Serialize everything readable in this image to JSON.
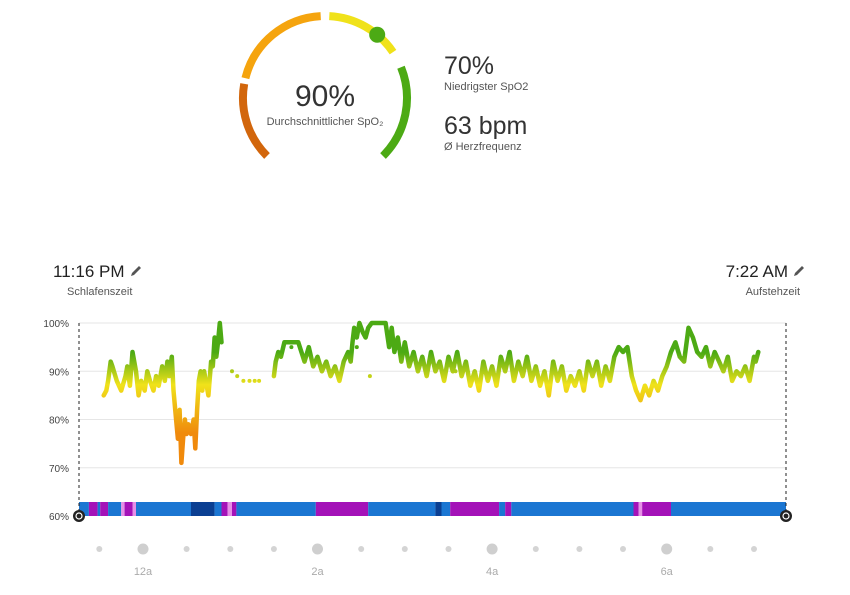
{
  "summary": {
    "avg_value": "90%",
    "avg_label": "Durchschnittlicher SpO₂",
    "avg_percent": 90,
    "lowest_value": "70%",
    "lowest_label": "Niedrigster SpO2",
    "hr_value": "63 bpm",
    "hr_label": "Ø Herzfrequenz"
  },
  "sleep": {
    "start_time": "11:16 PM",
    "start_label": "Schlafenszeit",
    "end_time": "7:22 AM",
    "end_label": "Aufstehzeit"
  },
  "colors": {
    "high": "#4caa14",
    "mid": "#f0e21a",
    "low": "#f08a0c",
    "gauge_low": "#d2660c",
    "gauge_mid": "#f5a40e",
    "gauge_high": "#4caa14",
    "stage_light": "#1b76d2",
    "stage_deep": "#0b3f92",
    "stage_rem": "#a412b8",
    "stage_awake": "#e68fe6"
  },
  "chart_data": {
    "type": "line",
    "ylabel": "",
    "y_ticks": [
      "100%",
      "90%",
      "80%",
      "70%",
      "60%"
    ],
    "ylim": [
      60,
      100
    ],
    "x_ticks": [
      "12a",
      "2a",
      "4a",
      "6a"
    ],
    "x_tick_hours": [
      0,
      2,
      4,
      6
    ],
    "xlim_hours": [
      -0.733,
      7.367
    ],
    "grid": true,
    "spo2": [
      [
        -0.45,
        85
      ],
      [
        -0.42,
        86
      ],
      [
        -0.4,
        88
      ],
      [
        -0.37,
        92
      ],
      [
        -0.35,
        91
      ],
      [
        -0.3,
        88
      ],
      [
        -0.25,
        86
      ],
      [
        -0.2,
        89
      ],
      [
        -0.18,
        91
      ],
      [
        -0.15,
        87
      ],
      [
        -0.12,
        94
      ],
      [
        -0.08,
        90
      ],
      [
        -0.05,
        85
      ],
      [
        -0.02,
        88
      ],
      [
        0.02,
        86
      ],
      [
        0.05,
        90
      ],
      [
        0.08,
        88
      ],
      [
        0.12,
        86
      ],
      [
        0.15,
        89
      ],
      [
        0.18,
        87
      ],
      [
        0.22,
        91
      ],
      [
        0.25,
        88
      ],
      [
        0.28,
        92
      ],
      [
        0.3,
        89
      ],
      [
        0.33,
        93
      ],
      [
        0.35,
        86
      ],
      [
        0.38,
        80
      ],
      [
        0.4,
        76
      ],
      [
        0.42,
        82
      ],
      [
        0.44,
        71
      ],
      [
        0.46,
        76
      ],
      [
        0.48,
        80
      ],
      [
        0.5,
        77
      ],
      [
        0.52,
        79
      ],
      [
        0.55,
        77
      ],
      [
        0.58,
        80
      ],
      [
        0.6,
        74
      ],
      [
        0.62,
        82
      ],
      [
        0.64,
        88
      ],
      [
        0.66,
        90
      ],
      [
        0.68,
        86
      ],
      [
        0.7,
        90
      ],
      [
        0.72,
        88
      ],
      [
        0.75,
        85
      ],
      [
        0.78,
        92
      ],
      [
        0.8,
        91
      ],
      [
        0.82,
        97
      ],
      [
        0.84,
        93
      ],
      [
        0.86,
        96
      ],
      [
        0.88,
        100
      ],
      [
        0.9,
        96
      ],
      [
        1.5,
        89
      ],
      [
        1.52,
        92
      ],
      [
        1.55,
        94
      ],
      [
        1.58,
        93
      ],
      [
        1.62,
        96
      ],
      [
        1.78,
        96
      ],
      [
        1.85,
        92
      ],
      [
        1.9,
        95
      ],
      [
        1.95,
        91
      ],
      [
        2.0,
        93
      ],
      [
        2.05,
        90
      ],
      [
        2.1,
        92
      ],
      [
        2.15,
        89
      ],
      [
        2.2,
        91
      ],
      [
        2.25,
        88
      ],
      [
        2.3,
        92
      ],
      [
        2.35,
        94
      ],
      [
        2.38,
        92
      ],
      [
        2.4,
        96
      ],
      [
        2.42,
        99
      ],
      [
        2.45,
        97
      ],
      [
        2.48,
        100
      ],
      [
        2.52,
        98
      ],
      [
        2.55,
        97
      ],
      [
        2.58,
        99
      ],
      [
        2.62,
        100
      ],
      [
        2.68,
        100
      ],
      [
        2.72,
        100
      ],
      [
        2.78,
        100
      ],
      [
        2.82,
        95
      ],
      [
        2.85,
        99
      ],
      [
        2.88,
        94
      ],
      [
        2.92,
        97
      ],
      [
        2.96,
        92
      ],
      [
        3.0,
        96
      ],
      [
        3.05,
        91
      ],
      [
        3.1,
        94
      ],
      [
        3.15,
        90
      ],
      [
        3.2,
        93
      ],
      [
        3.25,
        89
      ],
      [
        3.3,
        94
      ],
      [
        3.35,
        90
      ],
      [
        3.4,
        92
      ],
      [
        3.45,
        88
      ],
      [
        3.5,
        93
      ],
      [
        3.55,
        90
      ],
      [
        3.6,
        94
      ],
      [
        3.65,
        89
      ],
      [
        3.7,
        92
      ],
      [
        3.75,
        87
      ],
      [
        3.8,
        90
      ],
      [
        3.85,
        86
      ],
      [
        3.9,
        92
      ],
      [
        3.95,
        88
      ],
      [
        4.0,
        91
      ],
      [
        4.05,
        87
      ],
      [
        4.1,
        93
      ],
      [
        4.15,
        90
      ],
      [
        4.2,
        94
      ],
      [
        4.25,
        88
      ],
      [
        4.3,
        92
      ],
      [
        4.35,
        89
      ],
      [
        4.4,
        93
      ],
      [
        4.45,
        88
      ],
      [
        4.5,
        91
      ],
      [
        4.55,
        87
      ],
      [
        4.6,
        90
      ],
      [
        4.65,
        85
      ],
      [
        4.7,
        92
      ],
      [
        4.75,
        88
      ],
      [
        4.8,
        91
      ],
      [
        4.85,
        86
      ],
      [
        4.9,
        89
      ],
      [
        4.95,
        87
      ],
      [
        5.0,
        90
      ],
      [
        5.05,
        86
      ],
      [
        5.1,
        92
      ],
      [
        5.15,
        89
      ],
      [
        5.2,
        92
      ],
      [
        5.25,
        87
      ],
      [
        5.3,
        91
      ],
      [
        5.35,
        88
      ],
      [
        5.4,
        93
      ],
      [
        5.45,
        95
      ],
      [
        5.5,
        94
      ],
      [
        5.55,
        95
      ],
      [
        5.6,
        89
      ],
      [
        5.65,
        86
      ],
      [
        5.7,
        84
      ],
      [
        5.75,
        87
      ],
      [
        5.8,
        85
      ],
      [
        5.85,
        88
      ],
      [
        5.9,
        86
      ],
      [
        5.95,
        89
      ],
      [
        6.0,
        91
      ],
      [
        6.05,
        94
      ],
      [
        6.1,
        96
      ],
      [
        6.15,
        93
      ],
      [
        6.2,
        92
      ],
      [
        6.25,
        99
      ],
      [
        6.3,
        97
      ],
      [
        6.35,
        94
      ],
      [
        6.4,
        93
      ],
      [
        6.45,
        95
      ],
      [
        6.5,
        91
      ],
      [
        6.55,
        94
      ],
      [
        6.6,
        92
      ],
      [
        6.65,
        90
      ],
      [
        6.7,
        93
      ],
      [
        6.75,
        88
      ],
      [
        6.8,
        90
      ],
      [
        6.85,
        89
      ],
      [
        6.9,
        91
      ],
      [
        6.95,
        88
      ],
      [
        7.0,
        93
      ],
      [
        7.02,
        92
      ],
      [
        7.05,
        94
      ]
    ],
    "spo2_dots": [
      [
        1.02,
        90
      ],
      [
        1.08,
        89
      ],
      [
        1.15,
        88
      ],
      [
        1.22,
        88
      ],
      [
        1.28,
        88
      ],
      [
        1.33,
        88
      ],
      [
        1.7,
        95
      ],
      [
        2.45,
        95
      ],
      [
        2.6,
        89
      ],
      [
        3.58,
        90
      ],
      [
        3.82,
        88
      ]
    ],
    "stages": [
      {
        "from": -0.733,
        "to": -0.62,
        "stage": "light"
      },
      {
        "from": -0.62,
        "to": -0.52,
        "stage": "rem"
      },
      {
        "from": -0.52,
        "to": -0.49,
        "stage": "light"
      },
      {
        "from": -0.49,
        "to": -0.4,
        "stage": "rem"
      },
      {
        "from": -0.4,
        "to": -0.25,
        "stage": "light"
      },
      {
        "from": -0.25,
        "to": -0.21,
        "stage": "awake"
      },
      {
        "from": -0.21,
        "to": -0.12,
        "stage": "rem"
      },
      {
        "from": -0.12,
        "to": -0.08,
        "stage": "awake"
      },
      {
        "from": -0.08,
        "to": 0.55,
        "stage": "light"
      },
      {
        "from": 0.55,
        "to": 0.82,
        "stage": "deep"
      },
      {
        "from": 0.82,
        "to": 0.9,
        "stage": "light"
      },
      {
        "from": 0.9,
        "to": 0.97,
        "stage": "rem"
      },
      {
        "from": 0.97,
        "to": 1.02,
        "stage": "awake"
      },
      {
        "from": 1.02,
        "to": 1.07,
        "stage": "rem"
      },
      {
        "from": 1.07,
        "to": 1.98,
        "stage": "light"
      },
      {
        "from": 1.98,
        "to": 2.58,
        "stage": "rem"
      },
      {
        "from": 2.58,
        "to": 3.35,
        "stage": "light"
      },
      {
        "from": 3.35,
        "to": 3.42,
        "stage": "deep"
      },
      {
        "from": 3.42,
        "to": 3.52,
        "stage": "light"
      },
      {
        "from": 3.52,
        "to": 4.08,
        "stage": "rem"
      },
      {
        "from": 4.08,
        "to": 4.15,
        "stage": "light"
      },
      {
        "from": 4.15,
        "to": 4.22,
        "stage": "rem"
      },
      {
        "from": 4.22,
        "to": 5.62,
        "stage": "light"
      },
      {
        "from": 5.62,
        "to": 5.68,
        "stage": "rem"
      },
      {
        "from": 5.68,
        "to": 5.72,
        "stage": "awake"
      },
      {
        "from": 5.72,
        "to": 6.05,
        "stage": "rem"
      },
      {
        "from": 6.05,
        "to": 7.367,
        "stage": "light"
      }
    ]
  }
}
